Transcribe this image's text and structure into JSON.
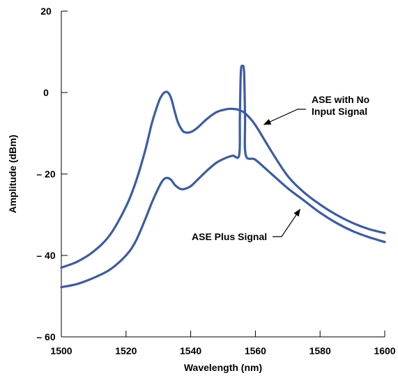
{
  "chart_data": {
    "type": "line",
    "xlabel": "Wavelength (nm)",
    "ylabel": "Amplitude (dBm)",
    "xlim": [
      1500,
      1600
    ],
    "ylim": [
      -60,
      20
    ],
    "xticks": [
      1500,
      1520,
      1540,
      1560,
      1580,
      1600
    ],
    "yticks": [
      -60,
      -40,
      -20,
      0,
      20
    ],
    "xtick_labels": [
      "1500",
      "1520",
      "1540",
      "1560",
      "1580",
      "1600"
    ],
    "ytick_labels": [
      "– 60",
      "– 40",
      "– 20",
      "0",
      "20"
    ],
    "grid": false,
    "line_color": "#3a5ba8",
    "series": [
      {
        "x": [
          1500,
          1505,
          1510,
          1515,
          1520,
          1523,
          1526,
          1528,
          1530,
          1531,
          1532,
          1533,
          1534,
          1535,
          1536,
          1537,
          1538,
          1540,
          1542,
          1545,
          1548,
          1551,
          1553,
          1555,
          1557,
          1560,
          1565,
          1570,
          1575,
          1580,
          1585,
          1590,
          1595,
          1600
        ],
        "y": [
          -43,
          -41.5,
          -39,
          -35,
          -28,
          -22,
          -14,
          -7.5,
          -2.5,
          -0.8,
          0.1,
          0,
          -1.5,
          -4.5,
          -7.2,
          -8.8,
          -9.7,
          -9.7,
          -8.7,
          -6.5,
          -4.8,
          -4.1,
          -4,
          -4.3,
          -5.2,
          -8,
          -14.5,
          -20.5,
          -24.5,
          -27.5,
          -30,
          -32,
          -33.5,
          -34.5
        ]
      },
      {
        "x": [
          1500,
          1505,
          1510,
          1515,
          1520,
          1523,
          1526,
          1528,
          1530,
          1531,
          1532,
          1533,
          1534,
          1535,
          1536,
          1537,
          1538,
          1540,
          1542,
          1545,
          1548,
          1551,
          1553,
          1555,
          1555.2,
          1555.5,
          1556,
          1556.5,
          1556.8,
          1557,
          1560,
          1565,
          1570,
          1575,
          1580,
          1585,
          1590,
          1595,
          1600
        ],
        "y": [
          -47.8,
          -47,
          -45.5,
          -43.5,
          -40,
          -36.5,
          -31,
          -27,
          -23.5,
          -22,
          -21.1,
          -21,
          -21.5,
          -22.6,
          -23.3,
          -23.7,
          -23.7,
          -23,
          -21.5,
          -19.2,
          -17.2,
          -16,
          -15.5,
          -15.3,
          -6,
          5,
          6.5,
          5,
          -6,
          -15.3,
          -16.5,
          -20,
          -23.5,
          -26.5,
          -29.5,
          -32,
          -34,
          -35.5,
          -36.7
        ]
      }
    ],
    "annotations": [
      {
        "lines": [
          "ASE with No",
          "Input Signal"
        ],
        "target": {
          "x": 1562,
          "y": -7.5
        }
      },
      {
        "lines": [
          "ASE Plus Signal"
        ],
        "target": {
          "x": 1574,
          "y": -28
        }
      }
    ]
  }
}
